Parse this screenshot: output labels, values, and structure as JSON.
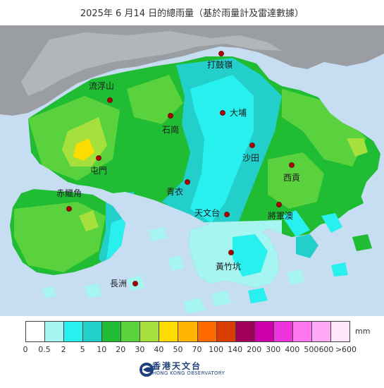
{
  "title": "2025年 6 月14 日的總雨量（基於雨量計及雷達數據）",
  "places": [
    {
      "name": "打鼓嶺"
    },
    {
      "name": "流浮山"
    },
    {
      "name": "大埔"
    },
    {
      "name": "石崗"
    },
    {
      "name": "沙田"
    },
    {
      "name": "屯門"
    },
    {
      "name": "西貢"
    },
    {
      "name": "青衣"
    },
    {
      "name": "赤鱲角"
    },
    {
      "name": "天文台"
    },
    {
      "name": "將軍澳"
    },
    {
      "name": "黃竹坑"
    },
    {
      "name": "長洲"
    }
  ],
  "legend": {
    "unit": "mm",
    "ticks": [
      "0",
      "0.5",
      "2",
      "5",
      "10",
      "20",
      "30",
      "40",
      "50",
      "70",
      "100",
      "140",
      "200",
      "300",
      "400",
      "500",
      "600",
      ">600"
    ],
    "colors": [
      "#ffffff",
      "#a6f5f0",
      "#27f0ee",
      "#22cfcb",
      "#1fbc34",
      "#5ad23d",
      "#a6e03c",
      "#fedc00",
      "#ffb400",
      "#ff6b00",
      "#d93d00",
      "#a3005c",
      "#cc00a9",
      "#ee33dd",
      "#ff77ee",
      "#ffaaf5",
      "#ffe6fb"
    ]
  },
  "logo": {
    "name_cn": "香港天文台",
    "name_en": "HONG KONG OBSERVATORY"
  },
  "colors": {
    "sea": "#c6ddf2",
    "mainland": "#9a9ea2",
    "light_cyan": "#a6f5f0",
    "cyan": "#27f0ee",
    "teal": "#22cfcb",
    "green": "#1fbc34",
    "light_green": "#5ad23d",
    "yellow_green": "#a6e03c",
    "yellow": "#fedc00"
  }
}
